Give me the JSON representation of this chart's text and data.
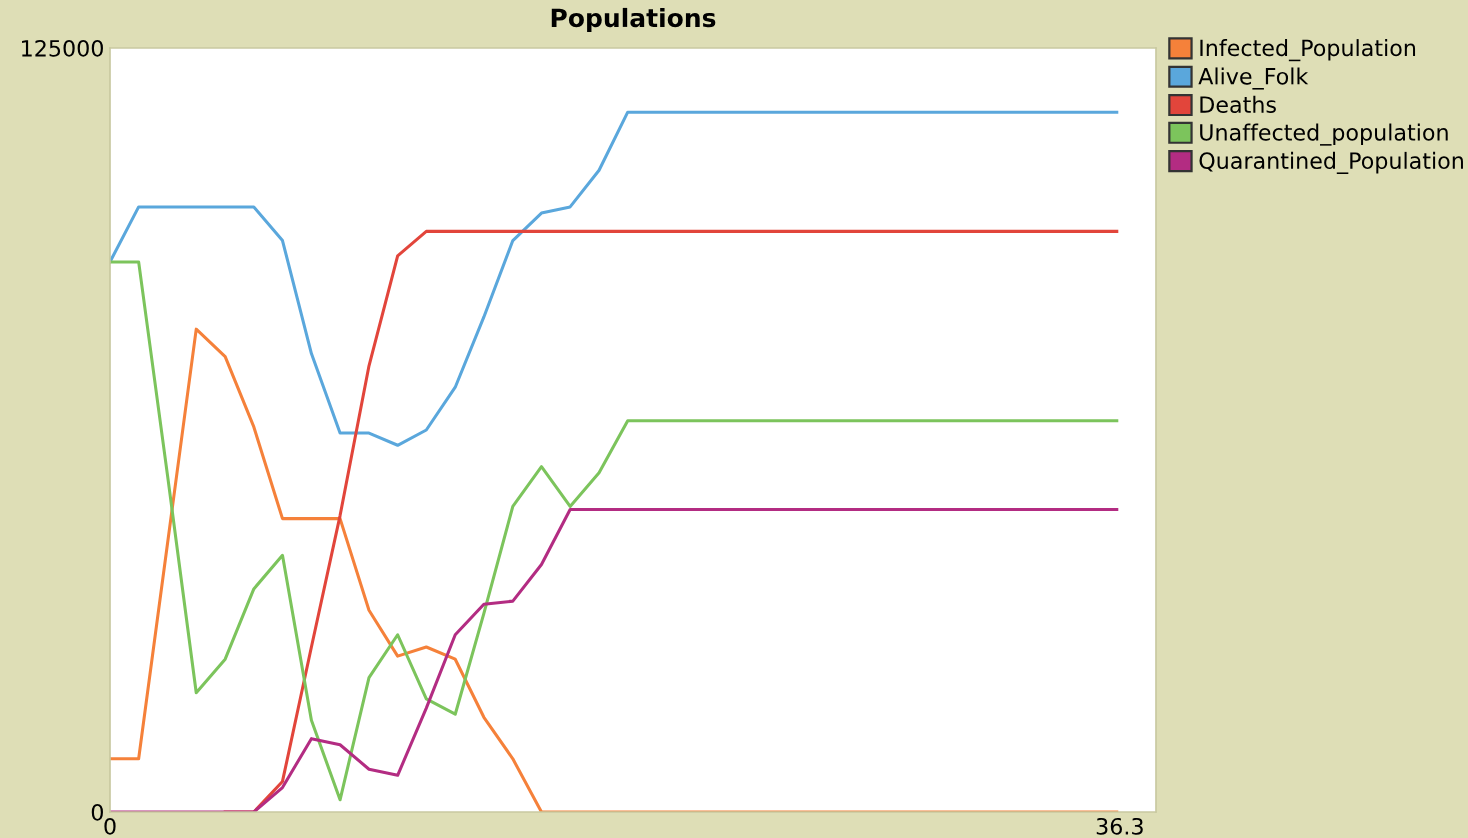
{
  "chart_data": {
    "type": "line",
    "title": "Populations",
    "x": [
      0,
      1.03,
      2.07,
      3.1,
      4.14,
      5.17,
      6.2,
      7.24,
      8.27,
      9.31,
      10.34,
      11.37,
      12.41,
      13.44,
      14.48,
      15.51,
      16.54,
      17.58,
      18.61,
      19.65,
      20.68,
      21.71,
      22.75,
      23.78,
      24.82,
      25.85,
      26.88,
      27.92,
      28.95,
      29.99,
      31.02,
      32.05,
      33.09,
      34.12,
      35.16,
      36.19
    ],
    "xlim": [
      0,
      37.6
    ],
    "xticks": [
      0,
      36.3
    ],
    "ylim": [
      0,
      125000
    ],
    "yticks": [
      0,
      125000
    ],
    "grid": false,
    "legend": "right",
    "marker": "none",
    "line_style": "solid",
    "series": [
      {
        "name": "Infected_Population",
        "color": "#f5813a",
        "values": [
          8700,
          8700,
          44000,
          79000,
          74500,
          63000,
          48000,
          48000,
          48000,
          33000,
          25500,
          27000,
          25000,
          15500,
          8700,
          0,
          0,
          0,
          0,
          0,
          0,
          0,
          0,
          0,
          0,
          0,
          0,
          0,
          0,
          0,
          0,
          0,
          0,
          0,
          0,
          0
        ]
      },
      {
        "name": "Alive_Folk",
        "color": "#5aa7dc",
        "values": [
          90000,
          99000,
          99000,
          99000,
          99000,
          99000,
          93500,
          75000,
          62000,
          62000,
          60000,
          62500,
          69500,
          81000,
          93500,
          98000,
          99000,
          105000,
          114500,
          114500,
          114500,
          114500,
          114500,
          114500,
          114500,
          114500,
          114500,
          114500,
          114500,
          114500,
          114500,
          114500,
          114500,
          114500,
          114500,
          114500
        ]
      },
      {
        "name": "Deaths",
        "color": "#e2453b",
        "values": [
          null,
          null,
          null,
          null,
          0,
          0,
          5000,
          27000,
          48500,
          73000,
          91000,
          95000,
          95000,
          95000,
          95000,
          95000,
          95000,
          95000,
          95000,
          95000,
          95000,
          95000,
          95000,
          95000,
          95000,
          95000,
          95000,
          95000,
          95000,
          95000,
          95000,
          95000,
          95000,
          95000,
          95000,
          95000
        ]
      },
      {
        "name": "Unaffected_population",
        "color": "#7cc45c",
        "values": [
          90000,
          90000,
          55000,
          19500,
          25000,
          36500,
          42000,
          15000,
          2000,
          22000,
          29000,
          18500,
          16000,
          32500,
          50000,
          56500,
          50000,
          55500,
          64000,
          64000,
          64000,
          64000,
          64000,
          64000,
          64000,
          64000,
          64000,
          64000,
          64000,
          64000,
          64000,
          64000,
          64000,
          64000,
          64000,
          64000
        ]
      },
      {
        "name": "Quarantined_Population",
        "color": "#b32c82",
        "values": [
          0,
          0,
          0,
          0,
          0,
          0,
          4000,
          12000,
          11000,
          7000,
          6000,
          17000,
          29000,
          34000,
          34500,
          40500,
          49500,
          49500,
          49500,
          49500,
          49500,
          49500,
          49500,
          49500,
          49500,
          49500,
          49500,
          49500,
          49500,
          49500,
          49500,
          49500,
          49500,
          49500,
          49500,
          49500
        ]
      }
    ]
  }
}
